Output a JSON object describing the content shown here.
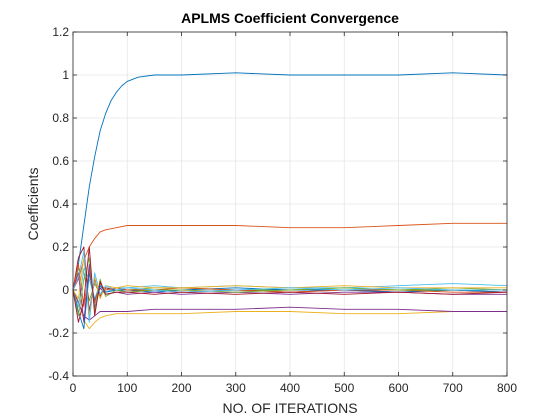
{
  "chart_data": {
    "type": "line",
    "title": "APLMS Coefficient Convergence",
    "xlabel": "NO. OF ITERATIONS",
    "ylabel": "Coefficients",
    "xlim": [
      0,
      800
    ],
    "ylim": [
      -0.4,
      1.2
    ],
    "xticks": [
      0,
      100,
      200,
      300,
      400,
      500,
      600,
      700,
      800
    ],
    "yticks": [
      -0.4,
      -0.2,
      0,
      0.2,
      0.4,
      0.6,
      0.8,
      1,
      1.2
    ],
    "xtick_labels": [
      "0",
      "100",
      "200",
      "300",
      "400",
      "500",
      "600",
      "700",
      "800"
    ],
    "ytick_labels": [
      "-0.4",
      "-0.2",
      "0",
      "0.2",
      "0.4",
      "0.6",
      "0.8",
      "1",
      "1.2"
    ],
    "grid": true,
    "series": [
      {
        "color": "#0072BD",
        "x": [
          0,
          10,
          20,
          30,
          40,
          50,
          60,
          70,
          80,
          90,
          100,
          120,
          150,
          200,
          300,
          400,
          500,
          600,
          700,
          800
        ],
        "y": [
          0,
          0.12,
          0.3,
          0.48,
          0.62,
          0.74,
          0.82,
          0.88,
          0.92,
          0.95,
          0.97,
          0.99,
          1.0,
          1.0,
          1.01,
          1.0,
          1.0,
          1.0,
          1.01,
          1.0
        ]
      },
      {
        "color": "#D95319",
        "x": [
          0,
          10,
          20,
          30,
          40,
          50,
          60,
          80,
          100,
          150,
          200,
          300,
          400,
          500,
          600,
          700,
          800
        ],
        "y": [
          0,
          0.05,
          0.14,
          0.2,
          0.24,
          0.27,
          0.28,
          0.29,
          0.3,
          0.3,
          0.3,
          0.3,
          0.29,
          0.29,
          0.3,
          0.31,
          0.31
        ]
      },
      {
        "color": "#EDB120",
        "x": [
          0,
          10,
          20,
          30,
          40,
          50,
          60,
          80,
          100,
          150,
          200,
          300,
          400,
          500,
          600,
          700,
          800
        ],
        "y": [
          0,
          -0.05,
          -0.14,
          -0.18,
          -0.15,
          -0.13,
          -0.12,
          -0.11,
          -0.11,
          -0.11,
          -0.11,
          -0.1,
          -0.1,
          -0.11,
          -0.11,
          -0.1,
          -0.1
        ]
      },
      {
        "color": "#7E2F8E",
        "x": [
          0,
          10,
          20,
          30,
          40,
          50,
          60,
          80,
          100,
          150,
          200,
          300,
          400,
          500,
          600,
          700,
          800
        ],
        "y": [
          0,
          -0.06,
          -0.12,
          -0.14,
          -0.12,
          -0.1,
          -0.1,
          -0.1,
          -0.1,
          -0.09,
          -0.09,
          -0.09,
          -0.08,
          -0.09,
          -0.09,
          -0.1,
          -0.1
        ]
      },
      {
        "color": "#77AC30",
        "x": [
          0,
          10,
          20,
          30,
          40,
          50,
          60,
          80,
          100,
          150,
          200,
          300,
          400,
          500,
          600,
          700,
          800
        ],
        "y": [
          0,
          0.1,
          0.08,
          -0.05,
          0.03,
          -0.02,
          0.01,
          0.0,
          0.0,
          0.01,
          0.01,
          0.0,
          0.0,
          0.01,
          0.0,
          0.01,
          0.0
        ]
      },
      {
        "color": "#4DBEEE",
        "x": [
          0,
          10,
          20,
          30,
          40,
          50,
          60,
          80,
          100,
          150,
          200,
          300,
          400,
          500,
          600,
          700,
          800
        ],
        "y": [
          0,
          -0.08,
          0.1,
          0.05,
          -0.04,
          0.03,
          -0.01,
          0.01,
          0.01,
          0.02,
          0.01,
          0.02,
          0.01,
          0.01,
          0.02,
          0.03,
          0.02
        ]
      },
      {
        "color": "#A2142F",
        "x": [
          0,
          10,
          20,
          30,
          40,
          50,
          60,
          80,
          100,
          150,
          200,
          300,
          400,
          500,
          600,
          700,
          800
        ],
        "y": [
          0,
          0.15,
          0.2,
          -0.1,
          0.05,
          -0.03,
          0.01,
          0.0,
          -0.01,
          0.0,
          -0.01,
          0.0,
          -0.01,
          0.0,
          -0.01,
          0.0,
          -0.01
        ]
      },
      {
        "color": "#0072BD",
        "x": [
          0,
          10,
          20,
          30,
          40,
          50,
          60,
          80,
          100,
          150,
          200,
          300,
          400,
          500,
          600,
          700,
          800
        ],
        "y": [
          0,
          -0.1,
          -0.18,
          0.08,
          -0.05,
          0.02,
          -0.01,
          0.0,
          0.0,
          -0.01,
          0.0,
          0.01,
          0.0,
          0.0,
          -0.01,
          0.0,
          -0.01
        ]
      },
      {
        "color": "#D95319",
        "x": [
          0,
          10,
          20,
          30,
          40,
          50,
          60,
          80,
          100,
          150,
          200,
          300,
          400,
          500,
          600,
          700,
          800
        ],
        "y": [
          0,
          0.12,
          -0.08,
          0.1,
          -0.06,
          0.03,
          0.0,
          0.01,
          0.0,
          0.0,
          0.01,
          0.0,
          -0.01,
          0.0,
          0.0,
          -0.01,
          -0.01
        ]
      },
      {
        "color": "#EDB120",
        "x": [
          0,
          10,
          20,
          30,
          40,
          50,
          60,
          80,
          100,
          150,
          200,
          300,
          400,
          500,
          600,
          700,
          800
        ],
        "y": [
          0,
          -0.04,
          0.15,
          -0.12,
          0.06,
          -0.04,
          0.02,
          0.01,
          0.02,
          0.01,
          0.01,
          0.02,
          0.01,
          0.02,
          0.01,
          0.01,
          0.01
        ]
      },
      {
        "color": "#7E2F8E",
        "x": [
          0,
          10,
          20,
          30,
          40,
          50,
          60,
          80,
          100,
          150,
          200,
          300,
          400,
          500,
          600,
          700,
          800
        ],
        "y": [
          0,
          0.08,
          -0.15,
          0.12,
          -0.08,
          0.01,
          -0.02,
          -0.01,
          -0.02,
          -0.01,
          -0.02,
          -0.01,
          -0.02,
          -0.01,
          -0.01,
          -0.02,
          -0.02
        ]
      },
      {
        "color": "#77AC30",
        "x": [
          0,
          10,
          20,
          30,
          40,
          50,
          60,
          80,
          100,
          150,
          200,
          300,
          400,
          500,
          600,
          700,
          800
        ],
        "y": [
          0,
          -0.12,
          0.05,
          0.15,
          -0.1,
          0.05,
          -0.03,
          0.0,
          -0.01,
          0.0,
          0.0,
          -0.01,
          0.0,
          0.01,
          0.0,
          0.0,
          0.0
        ]
      },
      {
        "color": "#4DBEEE",
        "x": [
          0,
          10,
          20,
          30,
          40,
          50,
          60,
          80,
          100,
          150,
          200,
          300,
          400,
          500,
          600,
          700,
          800
        ],
        "y": [
          0,
          0.06,
          0.18,
          -0.15,
          0.08,
          -0.02,
          0.02,
          0.0,
          0.01,
          0.0,
          -0.01,
          0.0,
          0.01,
          0.0,
          0.01,
          0.0,
          0.0
        ]
      },
      {
        "color": "#A2142F",
        "x": [
          0,
          10,
          20,
          30,
          40,
          50,
          60,
          80,
          100,
          150,
          200,
          300,
          400,
          500,
          600,
          700,
          800
        ],
        "y": [
          0,
          -0.15,
          -0.05,
          0.2,
          -0.12,
          0.04,
          -0.02,
          -0.01,
          -0.01,
          -0.02,
          -0.01,
          -0.02,
          -0.01,
          -0.02,
          -0.01,
          -0.02,
          -0.01
        ]
      }
    ]
  }
}
